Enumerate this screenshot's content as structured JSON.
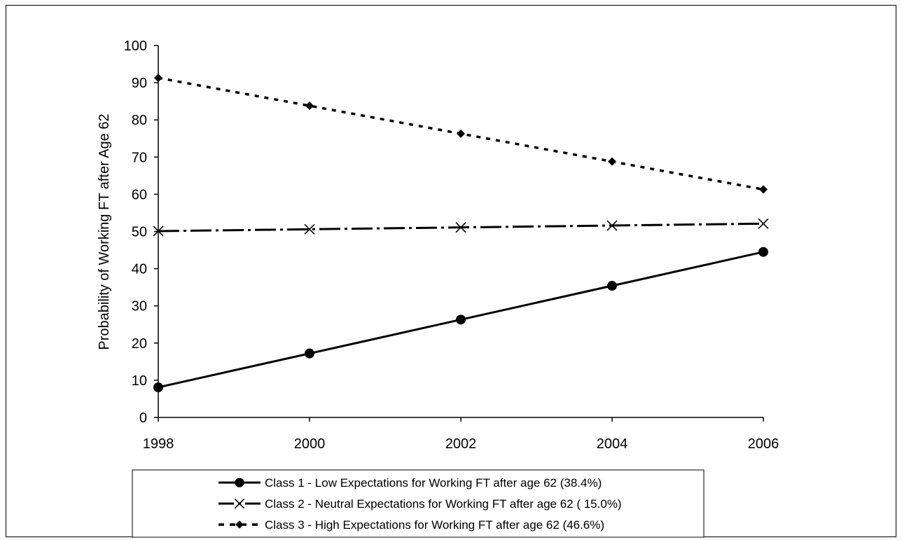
{
  "chart_data": {
    "type": "line",
    "title": "",
    "xlabel": "",
    "ylabel": "Probability of Working FT after Age 62",
    "x": [
      1998,
      2000,
      2002,
      2004,
      2006
    ],
    "x_tick_labels": [
      "1998",
      "2000",
      "2002",
      "2004",
      "2006"
    ],
    "y_tick_labels": [
      "0",
      "10",
      "20",
      "30",
      "40",
      "50",
      "60",
      "70",
      "80",
      "90",
      "100"
    ],
    "ylim": [
      0,
      100
    ],
    "grid": false,
    "legend_placement": "bottom",
    "series": [
      {
        "name": "Class 1 - Low Expectations for Working FT after age 62 (38.4%)",
        "values": [
          8.1,
          17.2,
          26.3,
          35.4,
          44.5
        ],
        "line_style": "solid",
        "marker": "circle",
        "color": "#000000"
      },
      {
        "name": "Class 2 - Neutral Expectations for Working FT after age 62 ( 15.0%)",
        "values": [
          50.1,
          50.6,
          51.1,
          51.6,
          52.1
        ],
        "line_style": "dash-dot",
        "marker": "x",
        "color": "#000000"
      },
      {
        "name": "Class 3 - High Expectations for Working FT after age 62 (46.6%)",
        "values": [
          91.3,
          83.8,
          76.3,
          68.8,
          61.3
        ],
        "line_style": "dotted",
        "marker": "diamond",
        "color": "#000000"
      }
    ]
  }
}
